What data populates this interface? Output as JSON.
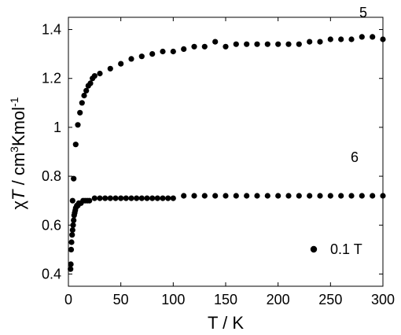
{
  "chart_data": {
    "type": "scatter",
    "xlabel": "T / K",
    "ylabel_parts": {
      "chi": "χ",
      "T": "T",
      "sep": " / cm",
      "sup3": "3",
      "mid": "Kmol",
      "supm1": "-1"
    },
    "xlim": [
      0,
      300
    ],
    "ylim": [
      0.35,
      1.45
    ],
    "x_ticks": [
      0,
      50,
      100,
      150,
      200,
      250,
      300
    ],
    "x_tick_labels": [
      "0",
      "50",
      "100",
      "150",
      "200",
      "250",
      "300"
    ],
    "y_ticks": [
      0.4,
      0.6,
      0.8,
      1.0,
      1.2,
      1.4
    ],
    "y_tick_labels": [
      "0.4",
      "0.6",
      "0.8",
      "1",
      "1.2",
      "1.4"
    ],
    "grid": false,
    "legend": {
      "position": "bottom-right",
      "entries": [
        {
          "label": "0.1 T",
          "marker": "filled-circle"
        }
      ]
    },
    "marker_color": "#000000",
    "series": [
      {
        "name": "5",
        "points": [
          [
            5,
            0.79
          ],
          [
            7,
            0.93
          ],
          [
            9,
            1.01
          ],
          [
            11,
            1.06
          ],
          [
            13,
            1.1
          ],
          [
            15,
            1.13
          ],
          [
            17,
            1.15
          ],
          [
            19,
            1.17
          ],
          [
            21,
            1.18
          ],
          [
            23,
            1.2
          ],
          [
            25,
            1.21
          ],
          [
            30,
            1.22
          ],
          [
            40,
            1.24
          ],
          [
            50,
            1.26
          ],
          [
            60,
            1.28
          ],
          [
            70,
            1.29
          ],
          [
            80,
            1.3
          ],
          [
            90,
            1.31
          ],
          [
            100,
            1.31
          ],
          [
            110,
            1.32
          ],
          [
            120,
            1.33
          ],
          [
            130,
            1.33
          ],
          [
            140,
            1.35
          ],
          [
            150,
            1.33
          ],
          [
            160,
            1.34
          ],
          [
            170,
            1.34
          ],
          [
            180,
            1.34
          ],
          [
            190,
            1.34
          ],
          [
            200,
            1.34
          ],
          [
            210,
            1.34
          ],
          [
            220,
            1.34
          ],
          [
            230,
            1.35
          ],
          [
            240,
            1.35
          ],
          [
            250,
            1.36
          ],
          [
            260,
            1.36
          ],
          [
            270,
            1.36
          ],
          [
            280,
            1.37
          ],
          [
            290,
            1.37
          ],
          [
            300,
            1.36
          ]
        ]
      },
      {
        "name": "6",
        "points": [
          [
            2,
            0.42
          ],
          [
            2.3,
            0.44
          ],
          [
            2.6,
            0.5
          ],
          [
            3,
            0.53
          ],
          [
            3.5,
            0.56
          ],
          [
            4,
            0.58
          ],
          [
            4.5,
            0.6
          ],
          [
            5,
            0.62
          ],
          [
            5.5,
            0.64
          ],
          [
            6,
            0.65
          ],
          [
            6.5,
            0.66
          ],
          [
            7,
            0.67
          ],
          [
            8,
            0.68
          ],
          [
            9,
            0.68
          ],
          [
            10,
            0.69
          ],
          [
            12,
            0.69
          ],
          [
            14,
            0.7
          ],
          [
            16,
            0.7
          ],
          [
            18,
            0.7
          ],
          [
            20,
            0.7
          ],
          [
            25,
            0.71
          ],
          [
            30,
            0.71
          ],
          [
            35,
            0.71
          ],
          [
            40,
            0.71
          ],
          [
            45,
            0.71
          ],
          [
            50,
            0.71
          ],
          [
            55,
            0.71
          ],
          [
            60,
            0.71
          ],
          [
            65,
            0.71
          ],
          [
            70,
            0.71
          ],
          [
            75,
            0.71
          ],
          [
            80,
            0.71
          ],
          [
            85,
            0.71
          ],
          [
            90,
            0.71
          ],
          [
            95,
            0.71
          ],
          [
            100,
            0.71
          ],
          [
            110,
            0.72
          ],
          [
            120,
            0.72
          ],
          [
            130,
            0.72
          ],
          [
            140,
            0.72
          ],
          [
            150,
            0.72
          ],
          [
            160,
            0.72
          ],
          [
            170,
            0.72
          ],
          [
            180,
            0.72
          ],
          [
            190,
            0.72
          ],
          [
            200,
            0.72
          ],
          [
            210,
            0.72
          ],
          [
            220,
            0.72
          ],
          [
            230,
            0.72
          ],
          [
            240,
            0.72
          ],
          [
            250,
            0.72
          ],
          [
            260,
            0.72
          ],
          [
            270,
            0.72
          ],
          [
            280,
            0.72
          ],
          [
            290,
            0.72
          ],
          [
            300,
            0.72
          ],
          [
            4,
            0.7
          ]
        ]
      }
    ]
  }
}
